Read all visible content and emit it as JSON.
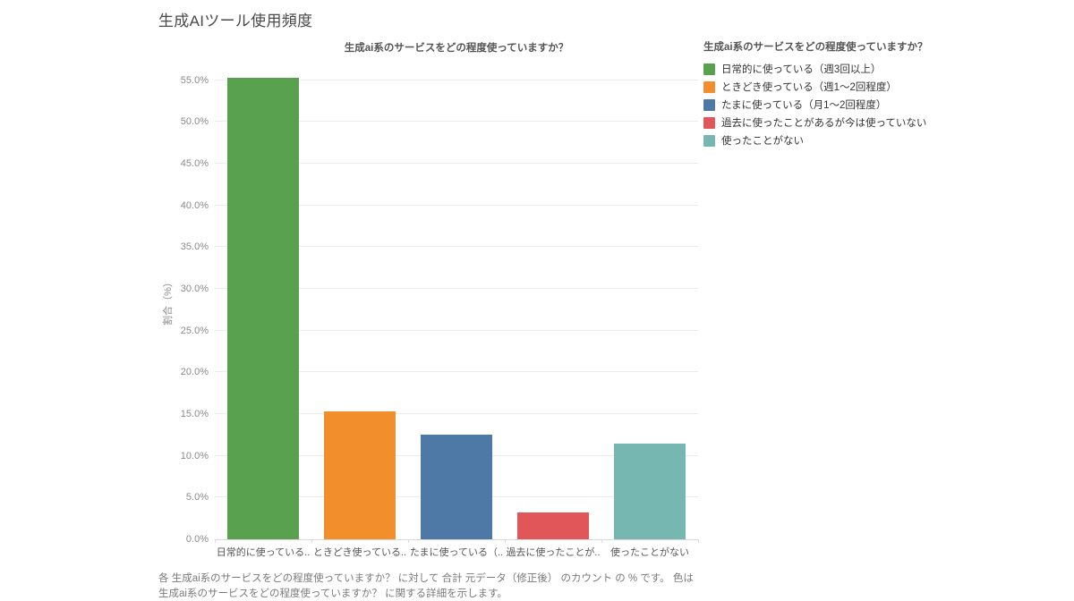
{
  "header": {
    "title": "生成AIツール使用頻度"
  },
  "chart": {
    "title": "生成ai系のサービスをどの程度使っていますか？"
  },
  "chart_data": {
    "type": "bar",
    "title": "生成ai系のサービスをどの程度使っていますか？",
    "categories": [
      "日常的に使っている（週3回以上）",
      "ときどき使っている（週1～2回程度）",
      "たまに使っている（月1～2回程度）",
      "過去に使ったことがあるが今は使っていない",
      "使ったことがない"
    ],
    "x_tick_labels": [
      "日常的に使っている..",
      "ときどき使っている..",
      "たまに使っている（..",
      "過去に使ったことが..",
      "使ったことがない"
    ],
    "values": [
      55.3,
      15.3,
      12.5,
      3.2,
      11.5
    ],
    "colors": [
      "#59a14f",
      "#f28e2b",
      "#4e79a7",
      "#e15759",
      "#76b7b2"
    ],
    "xlabel": "",
    "ylabel": "割合（%）",
    "ylim": [
      0,
      57.1
    ],
    "ytick_values": [
      0,
      5,
      10,
      15,
      20,
      25,
      30,
      35,
      40,
      45,
      50,
      55
    ],
    "ytick_labels": [
      "0.0%",
      "5.0%",
      "10.0%",
      "15.0%",
      "20.0%",
      "25.0%",
      "30.0%",
      "35.0%",
      "40.0%",
      "45.0%",
      "50.0%",
      "55.0%"
    ],
    "grid": true,
    "legend_position": "top-right"
  },
  "legend": {
    "title": "生成ai系のサービスをどの程度使っていますか？",
    "items": [
      {
        "label": "日常的に使っている（週3回以上）",
        "color": "#59a14f"
      },
      {
        "label": "ときどき使っている（週1～2回程度）",
        "color": "#f28e2b"
      },
      {
        "label": "たまに使っている（月1～2回程度）",
        "color": "#4e79a7"
      },
      {
        "label": "過去に使ったことがあるが今は使っていない",
        "color": "#e15759"
      },
      {
        "label": "使ったことがない",
        "color": "#76b7b2"
      }
    ]
  },
  "footer": {
    "lines": [
      "各 生成ai系のサービスをどの程度使っていますか？ に対して 合計 元データ（修正後） のカウント の % です。 色は",
      "生成ai系のサービスをどの程度使っていますか？ に関する詳細を示します。"
    ]
  },
  "colors": {
    "background": "#ffffff",
    "gridline": "#ececec",
    "axis": "#d9d9d9"
  }
}
